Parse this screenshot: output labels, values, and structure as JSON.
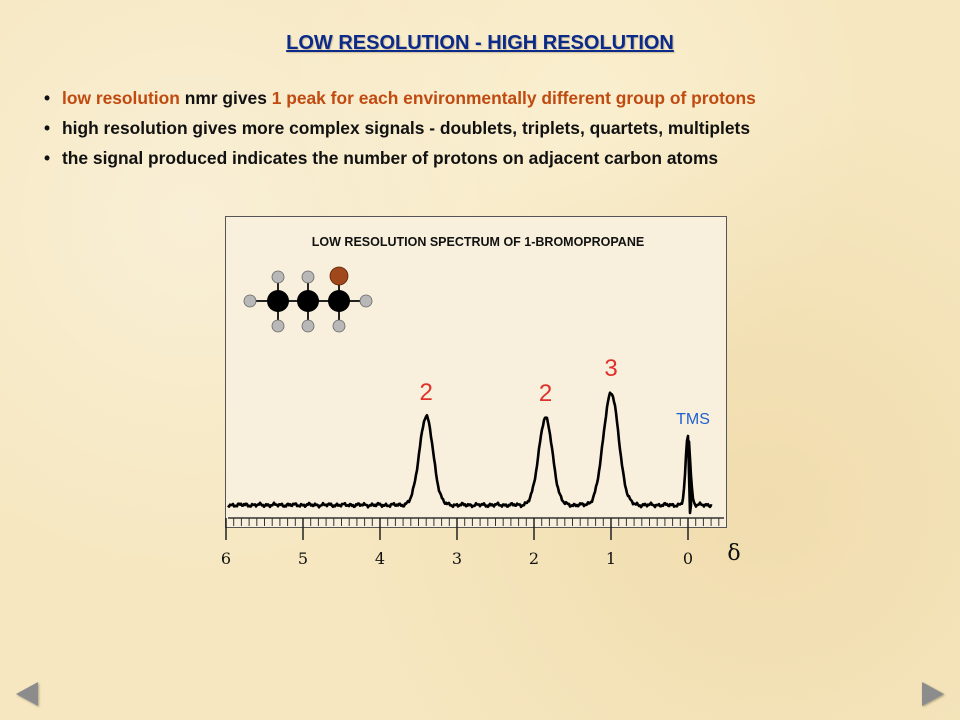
{
  "title": "LOW RESOLUTION - HIGH RESOLUTION",
  "bullets": [
    {
      "parts": [
        {
          "text": "low resolution",
          "highlight": true
        },
        {
          "text": " nmr gives ",
          "highlight": false
        },
        {
          "text": "1 peak for each environmentally different group of protons",
          "highlight": true
        }
      ]
    },
    {
      "parts": [
        {
          "text": "high resolution gives more complex signals - doublets, triplets, quartets, multiplets",
          "highlight": false
        }
      ]
    },
    {
      "parts": [
        {
          "text": "the signal produced indicates the number of protons on adjacent carbon atoms",
          "highlight": false
        }
      ]
    }
  ],
  "colors": {
    "title": "#0b2a8a",
    "highlight": "#c04a10",
    "integration_labels": "#e0302a",
    "tms_label": "#1f5fd0",
    "bromine_atom": "#a0481c",
    "carbon_atom": "#000000",
    "hydrogen_atom": "#b8b8b8"
  },
  "molecule": {
    "name": "1-bromopropane",
    "atoms": [
      "carbon",
      "carbon",
      "carbon",
      "bromine",
      "hydrogen",
      "hydrogen",
      "hydrogen",
      "hydrogen",
      "hydrogen",
      "hydrogen",
      "hydrogen"
    ]
  },
  "nav": {
    "prev_icon": "triangle-left-icon",
    "next_icon": "triangle-right-icon"
  },
  "chart_data": {
    "type": "line",
    "title": "LOW RESOLUTION SPECTRUM OF 1-BROMOPROPANE",
    "xlabel": "δ",
    "x_ticks": [
      6,
      5,
      4,
      3,
      2,
      1,
      0
    ],
    "xlim": [
      6,
      0
    ],
    "x_reversed": true,
    "ylim": [
      0,
      1
    ],
    "grid": false,
    "peaks": [
      {
        "shift": 3.4,
        "height": 0.63,
        "width": 0.09,
        "label": "2"
      },
      {
        "shift": 1.85,
        "height": 0.62,
        "width": 0.09,
        "label": "2"
      },
      {
        "shift": 1.0,
        "height": 0.8,
        "width": 0.1,
        "label": "3"
      },
      {
        "shift": 0.0,
        "height": 0.5,
        "width": 0.03,
        "label": "TMS"
      }
    ]
  }
}
